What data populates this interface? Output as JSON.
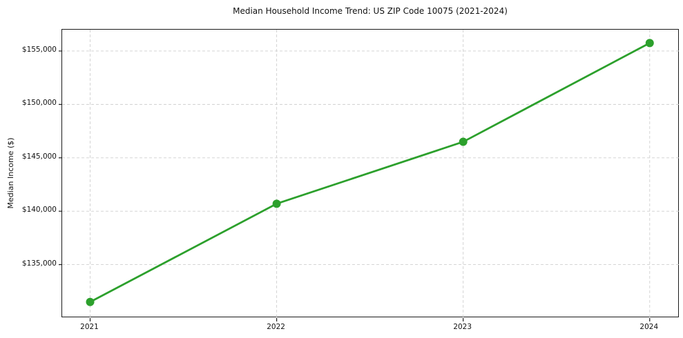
{
  "chart_data": {
    "type": "line",
    "title": "Median Household Income Trend: US ZIP Code 10075 (2021-2024)",
    "xlabel": "",
    "ylabel": "Median Income ($)",
    "x": [
      2021,
      2022,
      2023,
      2024
    ],
    "series": [
      {
        "name": "Median Household Income",
        "values": [
          131500,
          140700,
          146500,
          155750
        ]
      }
    ],
    "xtick_labels": [
      "2021",
      "2022",
      "2023",
      "2024"
    ],
    "yticks": [
      135000,
      140000,
      145000,
      150000,
      155000
    ],
    "ytick_labels": [
      "$135,000",
      "$140,000",
      "$145,000",
      "$150,000",
      "$155,000"
    ],
    "xlim": [
      2020.85,
      2024.16
    ],
    "ylim": [
      130000,
      157000
    ],
    "grid": true,
    "grid_style": "dashed",
    "legend_position": "none",
    "colors": {
      "line": "#2ca02c",
      "marker": "#2ca02c",
      "grid": "#cfcfcf",
      "axis": "#1a1a1a",
      "text": "#111111"
    }
  }
}
